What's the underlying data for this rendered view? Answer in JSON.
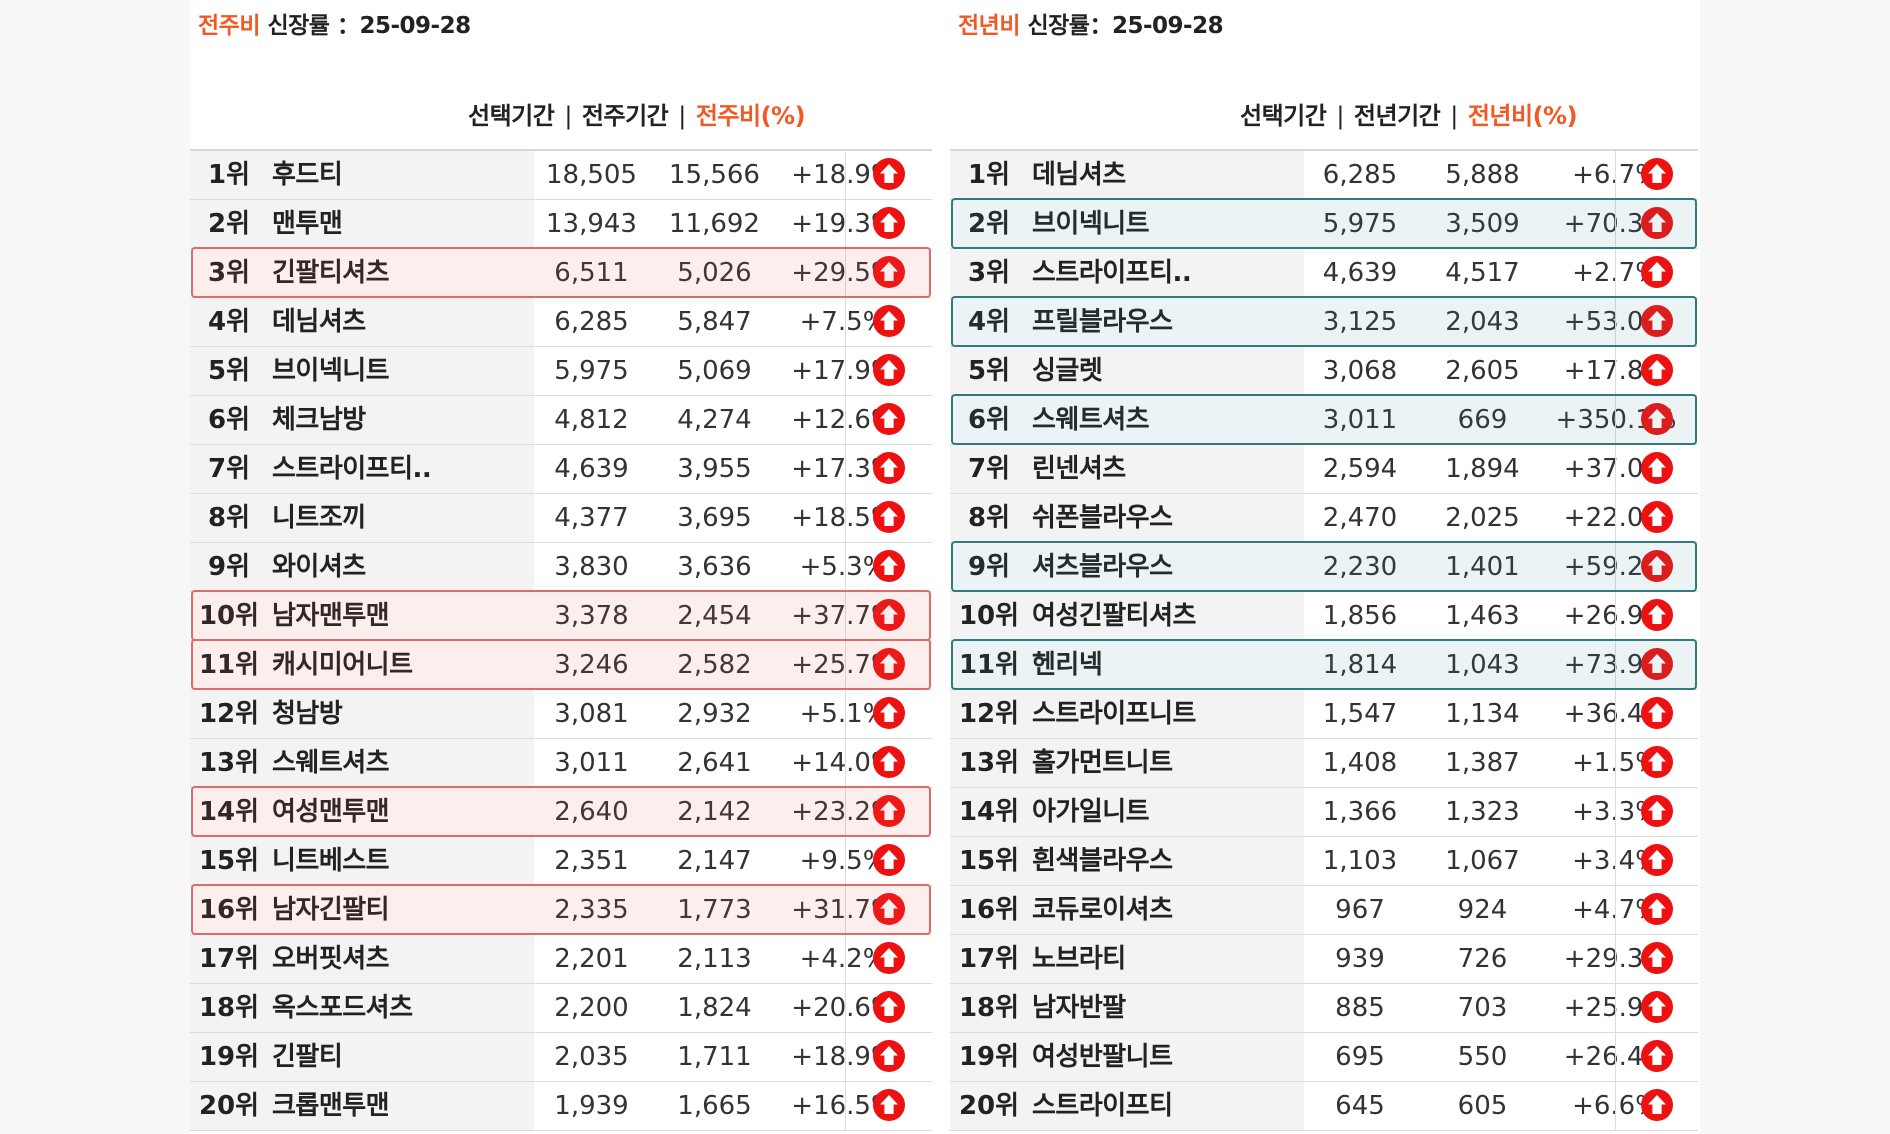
{
  "colors": {
    "accent": "#f15a24",
    "icon_red": "#ee1111",
    "highlight_red": "#e06a6a",
    "highlight_teal": "#2f7b7f"
  },
  "icons": {
    "trend": "arrow-up-circle-icon"
  },
  "weekly": {
    "title_accent": "전주비",
    "title_rest": " 신장률 ：25-09-28",
    "headers": {
      "selected": "선택기간",
      "compare": "전주기간",
      "ratio": "전주비(%)",
      "sep": "|"
    },
    "rows": [
      {
        "rank": "1위",
        "name": "후드티",
        "selected": "18,505",
        "compare": "15,566",
        "ratio": "+18.9%",
        "highlight": false
      },
      {
        "rank": "2위",
        "name": "맨투맨",
        "selected": "13,943",
        "compare": "11,692",
        "ratio": "+19.3%",
        "highlight": false
      },
      {
        "rank": "3위",
        "name": "긴팔티셔츠",
        "selected": "6,511",
        "compare": "5,026",
        "ratio": "+29.5%",
        "highlight": true
      },
      {
        "rank": "4위",
        "name": "데님셔츠",
        "selected": "6,285",
        "compare": "5,847",
        "ratio": "+7.5%",
        "highlight": false
      },
      {
        "rank": "5위",
        "name": "브이넥니트",
        "selected": "5,975",
        "compare": "5,069",
        "ratio": "+17.9%",
        "highlight": false
      },
      {
        "rank": "6위",
        "name": "체크남방",
        "selected": "4,812",
        "compare": "4,274",
        "ratio": "+12.6%",
        "highlight": false
      },
      {
        "rank": "7위",
        "name": "스트라이프티..",
        "selected": "4,639",
        "compare": "3,955",
        "ratio": "+17.3%",
        "highlight": false
      },
      {
        "rank": "8위",
        "name": "니트조끼",
        "selected": "4,377",
        "compare": "3,695",
        "ratio": "+18.5%",
        "highlight": false
      },
      {
        "rank": "9위",
        "name": "와이셔츠",
        "selected": "3,830",
        "compare": "3,636",
        "ratio": "+5.3%",
        "highlight": false
      },
      {
        "rank": "10위",
        "name": "남자맨투맨",
        "selected": "3,378",
        "compare": "2,454",
        "ratio": "+37.7%",
        "highlight": true
      },
      {
        "rank": "11위",
        "name": "캐시미어니트",
        "selected": "3,246",
        "compare": "2,582",
        "ratio": "+25.7%",
        "highlight": true
      },
      {
        "rank": "12위",
        "name": "청남방",
        "selected": "3,081",
        "compare": "2,932",
        "ratio": "+5.1%",
        "highlight": false
      },
      {
        "rank": "13위",
        "name": "스웨트셔츠",
        "selected": "3,011",
        "compare": "2,641",
        "ratio": "+14.0%",
        "highlight": false
      },
      {
        "rank": "14위",
        "name": "여성맨투맨",
        "selected": "2,640",
        "compare": "2,142",
        "ratio": "+23.2%",
        "highlight": true
      },
      {
        "rank": "15위",
        "name": "니트베스트",
        "selected": "2,351",
        "compare": "2,147",
        "ratio": "+9.5%",
        "highlight": false
      },
      {
        "rank": "16위",
        "name": "남자긴팔티",
        "selected": "2,335",
        "compare": "1,773",
        "ratio": "+31.7%",
        "highlight": true
      },
      {
        "rank": "17위",
        "name": "오버핏셔츠",
        "selected": "2,201",
        "compare": "2,113",
        "ratio": "+4.2%",
        "highlight": false
      },
      {
        "rank": "18위",
        "name": "옥스포드셔츠",
        "selected": "2,200",
        "compare": "1,824",
        "ratio": "+20.6%",
        "highlight": false
      },
      {
        "rank": "19위",
        "name": "긴팔티",
        "selected": "2,035",
        "compare": "1,711",
        "ratio": "+18.9%",
        "highlight": false
      },
      {
        "rank": "20위",
        "name": "크롭맨투맨",
        "selected": "1,939",
        "compare": "1,665",
        "ratio": "+16.5%",
        "highlight": false
      }
    ]
  },
  "yearly": {
    "title_accent": "전년비",
    "title_rest": " 신장률：25-09-28",
    "headers": {
      "selected": "선택기간",
      "compare": "전년기간",
      "ratio": "전년비(%)",
      "sep": "|"
    },
    "rows": [
      {
        "rank": "1위",
        "name": "데님셔츠",
        "selected": "6,285",
        "compare": "5,888",
        "ratio": "+6.7%",
        "highlight": false
      },
      {
        "rank": "2위",
        "name": "브이넥니트",
        "selected": "5,975",
        "compare": "3,509",
        "ratio": "+70.3%",
        "highlight": true
      },
      {
        "rank": "3위",
        "name": "스트라이프티..",
        "selected": "4,639",
        "compare": "4,517",
        "ratio": "+2.7%",
        "highlight": false
      },
      {
        "rank": "4위",
        "name": "프릴블라우스",
        "selected": "3,125",
        "compare": "2,043",
        "ratio": "+53.0%",
        "highlight": true
      },
      {
        "rank": "5위",
        "name": "싱글렛",
        "selected": "3,068",
        "compare": "2,605",
        "ratio": "+17.8%",
        "highlight": false
      },
      {
        "rank": "6위",
        "name": "스웨트셔츠",
        "selected": "3,011",
        "compare": "669",
        "ratio": "+350.1%",
        "highlight": true
      },
      {
        "rank": "7위",
        "name": "린넨셔츠",
        "selected": "2,594",
        "compare": "1,894",
        "ratio": "+37.0%",
        "highlight": false
      },
      {
        "rank": "8위",
        "name": "쉬폰블라우스",
        "selected": "2,470",
        "compare": "2,025",
        "ratio": "+22.0%",
        "highlight": false
      },
      {
        "rank": "9위",
        "name": "셔츠블라우스",
        "selected": "2,230",
        "compare": "1,401",
        "ratio": "+59.2%",
        "highlight": true
      },
      {
        "rank": "10위",
        "name": "여성긴팔티셔츠",
        "selected": "1,856",
        "compare": "1,463",
        "ratio": "+26.9%",
        "highlight": false
      },
      {
        "rank": "11위",
        "name": "헨리넥",
        "selected": "1,814",
        "compare": "1,043",
        "ratio": "+73.9%",
        "highlight": true
      },
      {
        "rank": "12위",
        "name": "스트라이프니트",
        "selected": "1,547",
        "compare": "1,134",
        "ratio": "+36.4%",
        "highlight": false
      },
      {
        "rank": "13위",
        "name": "홀가먼트니트",
        "selected": "1,408",
        "compare": "1,387",
        "ratio": "+1.5%",
        "highlight": false
      },
      {
        "rank": "14위",
        "name": "아가일니트",
        "selected": "1,366",
        "compare": "1,323",
        "ratio": "+3.3%",
        "highlight": false
      },
      {
        "rank": "15위",
        "name": "흰색블라우스",
        "selected": "1,103",
        "compare": "1,067",
        "ratio": "+3.4%",
        "highlight": false
      },
      {
        "rank": "16위",
        "name": "코듀로이셔츠",
        "selected": "967",
        "compare": "924",
        "ratio": "+4.7%",
        "highlight": false
      },
      {
        "rank": "17위",
        "name": "노브라티",
        "selected": "939",
        "compare": "726",
        "ratio": "+29.3%",
        "highlight": false
      },
      {
        "rank": "18위",
        "name": "남자반팔",
        "selected": "885",
        "compare": "703",
        "ratio": "+25.9%",
        "highlight": false
      },
      {
        "rank": "19위",
        "name": "여성반팔니트",
        "selected": "695",
        "compare": "550",
        "ratio": "+26.4%",
        "highlight": false
      },
      {
        "rank": "20위",
        "name": "스트라이프티",
        "selected": "645",
        "compare": "605",
        "ratio": "+6.6%",
        "highlight": false
      }
    ]
  }
}
